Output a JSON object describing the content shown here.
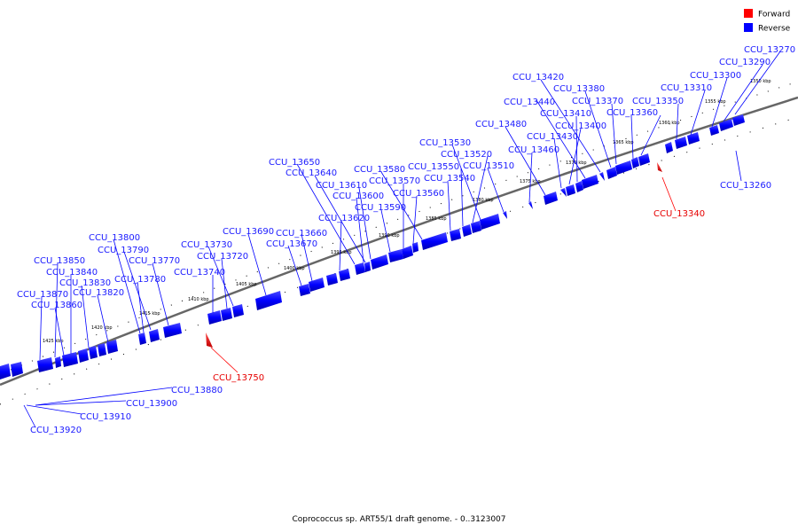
{
  "title": "Coprococcus sp. ART55/1 draft genome. - 0..3123007",
  "legend": {
    "forward": {
      "label": "Forward",
      "color": "#ff0000"
    },
    "reverse": {
      "label": "Reverse",
      "color": "#0000ff"
    }
  },
  "scale": {
    "unit": "kbp",
    "ticks": [
      "1350 kbp",
      "1355 kbp",
      "1360 kbp",
      "1365 kbp",
      "1370 kbp",
      "1375 kbp",
      "1380 kbp",
      "1385 kbp",
      "1390 kbp",
      "1395 kbp",
      "1400 kbp",
      "1405 kbp",
      "1410 kbp",
      "1415 kbp",
      "1420 kbp",
      "1425 kbp"
    ]
  },
  "genes": [
    {
      "name": "CCU_13270",
      "strand": "reverse"
    },
    {
      "name": "CCU_13290",
      "strand": "reverse"
    },
    {
      "name": "CCU_13300",
      "strand": "reverse"
    },
    {
      "name": "CCU_13310",
      "strand": "reverse"
    },
    {
      "name": "CCU_13350",
      "strand": "reverse"
    },
    {
      "name": "CCU_13360",
      "strand": "reverse"
    },
    {
      "name": "CCU_13370",
      "strand": "reverse"
    },
    {
      "name": "CCU_13380",
      "strand": "reverse"
    },
    {
      "name": "CCU_13420",
      "strand": "reverse"
    },
    {
      "name": "CCU_13440",
      "strand": "reverse"
    },
    {
      "name": "CCU_13410",
      "strand": "reverse"
    },
    {
      "name": "CCU_13400",
      "strand": "reverse"
    },
    {
      "name": "CCU_13430",
      "strand": "reverse"
    },
    {
      "name": "CCU_13480",
      "strand": "reverse"
    },
    {
      "name": "CCU_13460",
      "strand": "reverse"
    },
    {
      "name": "CCU_13530",
      "strand": "reverse"
    },
    {
      "name": "CCU_13520",
      "strand": "reverse"
    },
    {
      "name": "CCU_13550",
      "strand": "reverse"
    },
    {
      "name": "CCU_13510",
      "strand": "reverse"
    },
    {
      "name": "CCU_13540",
      "strand": "reverse"
    },
    {
      "name": "CCU_13580",
      "strand": "reverse"
    },
    {
      "name": "CCU_13570",
      "strand": "reverse"
    },
    {
      "name": "CCU_13560",
      "strand": "reverse"
    },
    {
      "name": "CCU_13650",
      "strand": "reverse"
    },
    {
      "name": "CCU_13640",
      "strand": "reverse"
    },
    {
      "name": "CCU_13610",
      "strand": "reverse"
    },
    {
      "name": "CCU_13600",
      "strand": "reverse"
    },
    {
      "name": "CCU_13590",
      "strand": "reverse"
    },
    {
      "name": "CCU_13620",
      "strand": "reverse"
    },
    {
      "name": "CCU_13690",
      "strand": "reverse"
    },
    {
      "name": "CCU_13660",
      "strand": "reverse"
    },
    {
      "name": "CCU_13670",
      "strand": "reverse"
    },
    {
      "name": "CCU_13730",
      "strand": "reverse"
    },
    {
      "name": "CCU_13720",
      "strand": "reverse"
    },
    {
      "name": "CCU_13740",
      "strand": "reverse"
    },
    {
      "name": "CCU_13800",
      "strand": "reverse"
    },
    {
      "name": "CCU_13790",
      "strand": "reverse"
    },
    {
      "name": "CCU_13770",
      "strand": "reverse"
    },
    {
      "name": "CCU_13780",
      "strand": "reverse"
    },
    {
      "name": "CCU_13850",
      "strand": "reverse"
    },
    {
      "name": "CCU_13840",
      "strand": "reverse"
    },
    {
      "name": "CCU_13830",
      "strand": "reverse"
    },
    {
      "name": "CCU_13820",
      "strand": "reverse"
    },
    {
      "name": "CCU_13870",
      "strand": "reverse"
    },
    {
      "name": "CCU_13860",
      "strand": "reverse"
    },
    {
      "name": "CCU_13340",
      "strand": "forward"
    },
    {
      "name": "CCU_13750",
      "strand": "forward"
    },
    {
      "name": "CCU_13260",
      "strand": "reverse"
    },
    {
      "name": "CCU_13880",
      "strand": "reverse"
    },
    {
      "name": "CCU_13900",
      "strand": "reverse"
    },
    {
      "name": "CCU_13910",
      "strand": "reverse"
    },
    {
      "name": "CCU_13920",
      "strand": "reverse"
    }
  ]
}
